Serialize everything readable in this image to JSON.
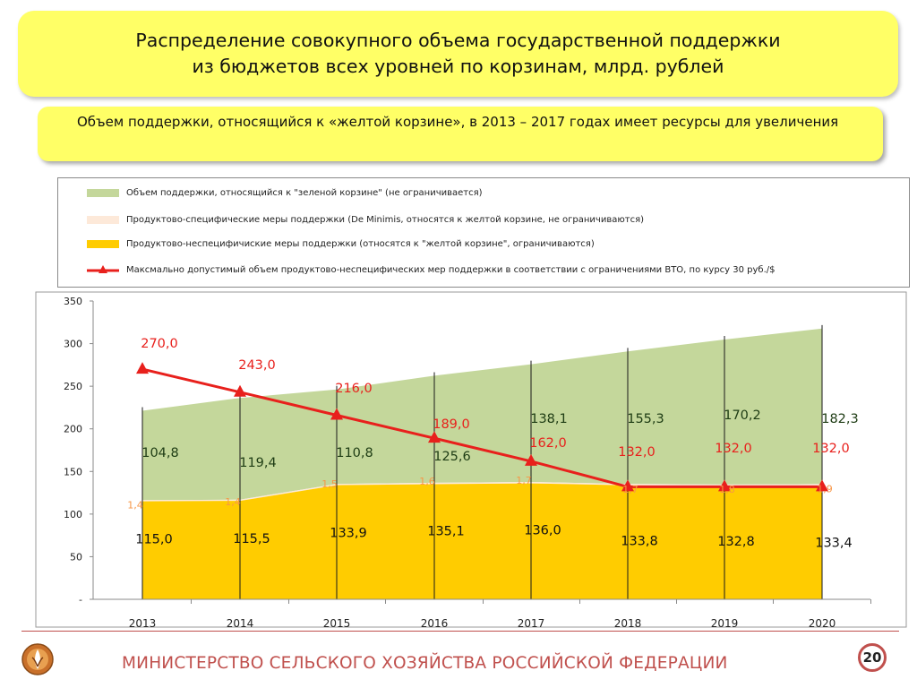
{
  "header": {
    "title_line1": "Распределение совокупного объема государственной поддержки",
    "title_line2": "из бюджетов всех уровней по корзинам, млрд. рублей",
    "note": "Объем поддержки, относящийся к «желтой корзине», в 2013 – 2017 годах имеет ресурсы для увеличения"
  },
  "legend": {
    "items": [
      {
        "label": "Объем поддержки, относящийся к \"зеленой корзине\" (не ограничивается)",
        "color": "#c4d79b"
      },
      {
        "label": "Продуктово-специфические меры поддержки (De Minimis, относятся к желтой корзине, не ограничиваются)",
        "color": "#fde9d9"
      },
      {
        "label": "Продуктово-неспецифичиские меры поддержки (относятся к \"желтой корзине\", ограничиваются)",
        "color": "#ffcc00"
      },
      {
        "label": "Максмально допустимый объем продуктово-неспецифических мер поддержки в соответствии с ограничениями ВТО, по курсу 30 руб./$",
        "color": "#e8201c"
      }
    ]
  },
  "chart_data": {
    "type": "area",
    "categories": [
      "2013",
      "2014",
      "2015",
      "2016",
      "2017",
      "2018",
      "2019",
      "2020"
    ],
    "series": [
      {
        "name": "Продуктово-неспецифичиские меры поддержки (относятся к \"желтой корзине\", ограничиваются)",
        "kind": "stacked-area",
        "color": "#ffcc00",
        "values": [
          115.0,
          115.5,
          133.9,
          135.1,
          136.0,
          133.8,
          132.8,
          133.4
        ],
        "labels": [
          "115,0",
          "115,5",
          "133,9",
          "135,1",
          "136,0",
          "133,8",
          "132,8",
          "133,4"
        ],
        "label_color": "#111111"
      },
      {
        "name": "Продуктово-специфические меры поддержки (De Minimis, относятся к желтой корзине, не ограничиваются)",
        "kind": "stacked-area",
        "color": "#fde9d9",
        "values": [
          1.4,
          1.4,
          1.5,
          1.6,
          1.7,
          1.7,
          1.8,
          1.9
        ],
        "labels": [
          "1,4",
          "1,4",
          "1,5",
          "1,6",
          "1,7",
          "1,7",
          "1,8",
          "1,9"
        ],
        "label_color": "#f79646"
      },
      {
        "name": "Объем поддержки, относящийся к \"зеленой корзине\" (не ограничивается)",
        "kind": "stacked-area",
        "color": "#c4d79b",
        "values": [
          104.8,
          119.4,
          110.8,
          125.6,
          138.1,
          155.3,
          170.2,
          182.3
        ],
        "labels": [
          "104,8",
          "119,4",
          "110,8",
          "125,6",
          "138,1",
          "155,3",
          "170,2",
          "182,3"
        ],
        "label_color": "#1e3c14"
      },
      {
        "name": "Максмально допустимый объем продуктово-неспецифических мер поддержки в соответствии с ограничениями ВТО, по курсу 30 руб./$",
        "kind": "line",
        "color": "#e8201c",
        "values": [
          270.0,
          243.0,
          216.0,
          189.0,
          162.0,
          132.0,
          132.0,
          132.0
        ],
        "labels": [
          "270,0",
          "243,0",
          "216,0",
          "189,0",
          "162,0",
          "132,0",
          "132,0",
          "132,0"
        ],
        "label_color": "#e8201c"
      }
    ],
    "ylim": [
      0,
      350
    ],
    "yticks": [
      0,
      50,
      100,
      150,
      200,
      250,
      300,
      350
    ],
    "ytick_labels": [
      "-",
      "50",
      "100",
      "150",
      "200",
      "250",
      "300",
      "350"
    ],
    "grid": false,
    "legend_position": "top"
  },
  "footer": {
    "organization": "МИНИСТЕРСТВО СЕЛЬСКОГО ХОЗЯЙСТВА РОССИЙСКОЙ ФЕДЕРАЦИИ",
    "page_number": "20"
  }
}
